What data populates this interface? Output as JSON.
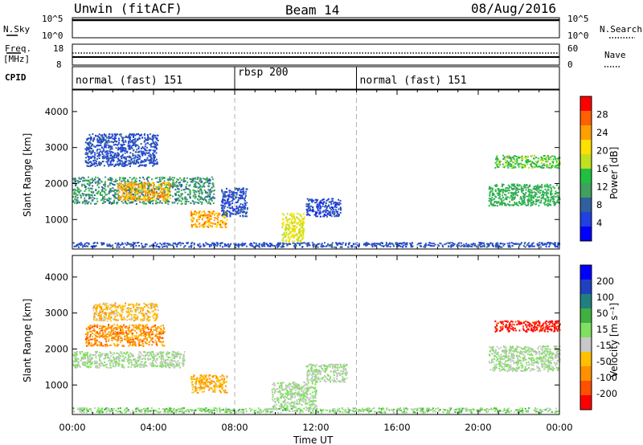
{
  "header": {
    "station": "Unwin (fitACF)",
    "beam": "Beam 14",
    "date": "08/Aug/2016"
  },
  "params": {
    "nsky_label": "N.Sky",
    "nsearch_label": "N.Search",
    "freq_label_1": "Freq.",
    "freq_label_2": "[MHz]",
    "nave_label": "Nave",
    "cpid_label": "CPID",
    "nsky_ticks": [
      "10^5",
      "10^0"
    ],
    "nsearch_ticks": [
      "10^5",
      "10^0"
    ],
    "freq_ticks": [
      "18",
      "8"
    ],
    "nave_ticks": [
      "60",
      "0"
    ]
  },
  "cpid": {
    "segments": [
      {
        "label": "normal (fast) 151",
        "start_hour": 0
      },
      {
        "label": "rbsp 200",
        "start_hour": 8
      },
      {
        "label": "normal (fast) 151",
        "start_hour": 14
      }
    ]
  },
  "axes": {
    "ylabel": "Slant Range [km]",
    "xlabel": "Time UT",
    "y_ticks": [
      "1000",
      "2000",
      "3000",
      "4000"
    ],
    "x_ticks": [
      "00:00",
      "04:00",
      "08:00",
      "12:00",
      "16:00",
      "20:00",
      "00:00"
    ]
  },
  "power_scale": {
    "label": "Power [dB]",
    "ticks": [
      "28",
      "24",
      "20",
      "16",
      "12",
      "8",
      "4"
    ]
  },
  "velocity_scale": {
    "label": "Velocity [m s⁻¹]",
    "ticks": [
      "200",
      "100",
      "50",
      "15",
      "-15",
      "-50",
      "-100",
      "-200"
    ]
  },
  "chart_data": [
    {
      "type": "heatmap",
      "title": "Power",
      "xlabel": "Time UT",
      "ylabel": "Slant Range [km]",
      "xlim": [
        0,
        24
      ],
      "ylim": [
        180,
        4600
      ],
      "colorbar_label": "Power [dB]",
      "colorbar_range": [
        0,
        30
      ],
      "colors": [
        "#0000ff",
        "#2040e0",
        "#3060a0",
        "#40a060",
        "#20c040",
        "#c0e020",
        "#ffe000",
        "#ffa000",
        "#ff6000",
        "#ff0000"
      ],
      "regions": [
        {
          "t": [
            0.0,
            7.0
          ],
          "r": [
            1450,
            2200
          ],
          "value": 10
        },
        {
          "t": [
            2.2,
            4.8
          ],
          "r": [
            1550,
            2050
          ],
          "value": 22
        },
        {
          "t": [
            0.6,
            4.2
          ],
          "r": [
            2500,
            3400
          ],
          "value": 6
        },
        {
          "t": [
            5.8,
            7.6
          ],
          "r": [
            800,
            1250
          ],
          "value": 22
        },
        {
          "t": [
            7.3,
            8.6
          ],
          "r": [
            1100,
            1900
          ],
          "value": 6
        },
        {
          "t": [
            10.3,
            11.4
          ],
          "r": [
            400,
            1200
          ],
          "value": 18
        },
        {
          "t": [
            11.5,
            13.2
          ],
          "r": [
            1100,
            1600
          ],
          "value": 5
        },
        {
          "t": [
            20.8,
            24.0
          ],
          "r": [
            2450,
            2800
          ],
          "value": 14
        },
        {
          "t": [
            20.5,
            24.0
          ],
          "r": [
            1400,
            2000
          ],
          "value": 12
        },
        {
          "t": [
            0.0,
            24.0
          ],
          "r": [
            250,
            380
          ],
          "value": 6
        }
      ]
    },
    {
      "type": "heatmap",
      "title": "Velocity",
      "xlabel": "Time UT",
      "ylabel": "Slant Range [km]",
      "xlim": [
        0,
        24
      ],
      "ylim": [
        180,
        4600
      ],
      "colorbar_label": "Velocity [m s⁻¹]",
      "colorbar_range": [
        -200,
        200
      ],
      "colors": [
        "#ff0000",
        "#ff5000",
        "#ff9000",
        "#ffc000",
        "#c8c8c8",
        "#80e060",
        "#40b040",
        "#208080",
        "#2040c0",
        "#0000ff"
      ],
      "regions": [
        {
          "t": [
            0.0,
            5.5
          ],
          "r": [
            1500,
            1950
          ],
          "value": 0
        },
        {
          "t": [
            0.6,
            4.5
          ],
          "r": [
            2100,
            2700
          ],
          "value": -100
        },
        {
          "t": [
            1.0,
            4.2
          ],
          "r": [
            2800,
            3300
          ],
          "value": -60
        },
        {
          "t": [
            5.8,
            7.6
          ],
          "r": [
            800,
            1300
          ],
          "value": -70
        },
        {
          "t": [
            9.8,
            12.0
          ],
          "r": [
            350,
            1100
          ],
          "value": 0
        },
        {
          "t": [
            11.5,
            13.5
          ],
          "r": [
            1100,
            1600
          ],
          "value": 0
        },
        {
          "t": [
            20.8,
            24.0
          ],
          "r": [
            2500,
            2800
          ],
          "value": -180
        },
        {
          "t": [
            20.5,
            24.0
          ],
          "r": [
            1400,
            2100
          ],
          "value": 0
        },
        {
          "t": [
            0.0,
            24.0
          ],
          "r": [
            250,
            380
          ],
          "value": 20
        }
      ]
    }
  ]
}
